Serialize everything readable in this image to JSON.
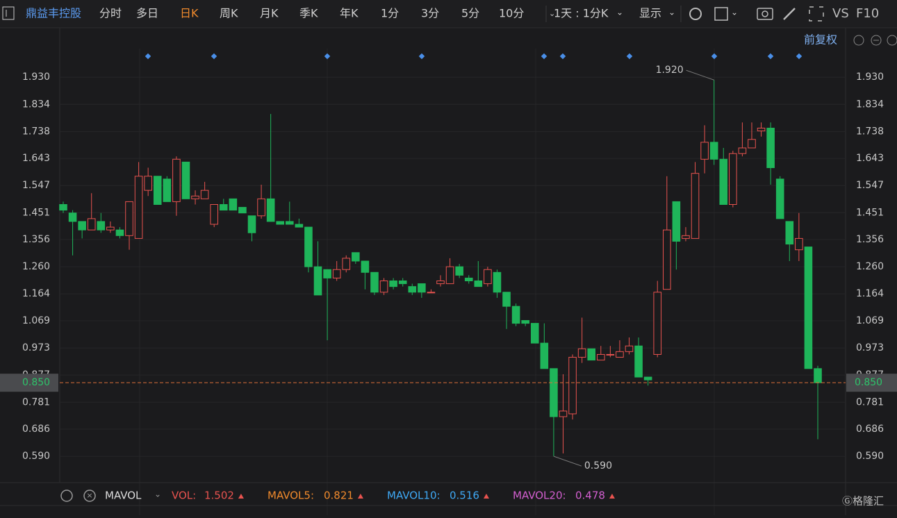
{
  "toolbar": {
    "stock": "鼎益丰控股",
    "tabs": [
      "分时",
      "多日",
      "日K",
      "周K",
      "月K",
      "季K",
      "年K",
      "1分",
      "3分",
      "5分",
      "10分"
    ],
    "period": "1天 : 1分K",
    "display": "显示",
    "vs": "VS",
    "f10": "F10"
  },
  "adjust": "前复权",
  "chart_data": {
    "type": "candlestick",
    "open": [
      1.48,
      1.45,
      1.42,
      1.39,
      1.42,
      1.39,
      1.39,
      1.37,
      1.36,
      1.53,
      1.58,
      1.57,
      1.49,
      1.63,
      1.5,
      1.5,
      1.41,
      1.48,
      1.5,
      1.47,
      1.44,
      1.44,
      1.5,
      1.42,
      1.42,
      1.41,
      1.4,
      1.26,
      1.25,
      1.22,
      1.25,
      1.31,
      1.28,
      1.24,
      1.17,
      1.21,
      1.21,
      1.19,
      1.2,
      1.17,
      1.2,
      1.2,
      1.26,
      1.22,
      1.21,
      1.2,
      1.24,
      1.17,
      1.12,
      1.07,
      1.06,
      0.99,
      0.9,
      0.73,
      0.74,
      0.94,
      0.97,
      0.93,
      0.95,
      0.94,
      0.96,
      0.98,
      0.87,
      0.95,
      1.18,
      1.49,
      1.36,
      1.36,
      1.64,
      1.7,
      1.64,
      1.48,
      1.66,
      1.68,
      1.74,
      1.75,
      1.57,
      1.42,
      1.32,
      1.33,
      0.9
    ],
    "high": [
      1.49,
      1.46,
      1.42,
      1.52,
      1.45,
      1.42,
      1.4,
      1.49,
      1.63,
      1.61,
      1.58,
      1.58,
      1.65,
      1.63,
      1.53,
      1.56,
      1.48,
      1.5,
      1.5,
      1.47,
      1.44,
      1.55,
      1.8,
      1.42,
      1.49,
      1.43,
      1.4,
      1.35,
      1.25,
      1.28,
      1.3,
      1.31,
      1.28,
      1.24,
      1.22,
      1.22,
      1.22,
      1.2,
      1.2,
      1.18,
      1.23,
      1.29,
      1.27,
      1.23,
      1.28,
      1.26,
      1.25,
      1.17,
      1.13,
      1.07,
      1.06,
      1.06,
      0.9,
      0.88,
      0.95,
      1.08,
      0.97,
      0.98,
      0.98,
      1.0,
      1.01,
      1.01,
      0.87,
      1.21,
      1.58,
      1.49,
      1.4,
      1.63,
      1.76,
      1.92,
      1.68,
      1.67,
      1.77,
      1.77,
      1.77,
      1.77,
      1.58,
      1.42,
      1.45,
      1.33,
      0.91
    ],
    "low": [
      1.45,
      1.3,
      1.36,
      1.39,
      1.38,
      1.38,
      1.36,
      1.32,
      1.36,
      1.51,
      1.48,
      1.49,
      1.44,
      1.5,
      1.48,
      1.5,
      1.4,
      1.46,
      1.46,
      1.45,
      1.35,
      1.43,
      1.42,
      1.41,
      1.41,
      1.4,
      1.24,
      1.16,
      1.0,
      1.21,
      1.24,
      1.27,
      1.18,
      1.16,
      1.16,
      1.18,
      1.19,
      1.16,
      1.15,
      1.17,
      1.19,
      1.2,
      1.22,
      1.2,
      1.19,
      1.19,
      1.15,
      1.04,
      1.05,
      1.05,
      0.99,
      0.9,
      0.59,
      0.6,
      0.72,
      0.92,
      0.93,
      0.93,
      0.94,
      0.94,
      0.95,
      0.87,
      0.84,
      0.94,
      1.18,
      1.25,
      1.35,
      1.36,
      1.59,
      1.62,
      1.48,
      1.47,
      1.65,
      1.68,
      1.72,
      1.55,
      1.43,
      1.28,
      1.28,
      0.9,
      0.65
    ],
    "close": [
      1.46,
      1.42,
      1.39,
      1.43,
      1.39,
      1.4,
      1.37,
      1.49,
      1.58,
      1.58,
      1.48,
      1.49,
      1.64,
      1.5,
      1.51,
      1.53,
      1.48,
      1.46,
      1.46,
      1.45,
      1.38,
      1.5,
      1.42,
      1.41,
      1.41,
      1.4,
      1.26,
      1.16,
      1.22,
      1.25,
      1.29,
      1.28,
      1.24,
      1.17,
      1.21,
      1.19,
      1.2,
      1.17,
      1.17,
      1.17,
      1.21,
      1.26,
      1.23,
      1.21,
      1.19,
      1.25,
      1.17,
      1.12,
      1.06,
      1.06,
      0.99,
      0.9,
      0.73,
      0.75,
      0.94,
      0.97,
      0.93,
      0.95,
      0.95,
      0.96,
      0.98,
      0.87,
      0.86,
      1.17,
      1.39,
      1.35,
      1.37,
      1.59,
      1.7,
      1.64,
      1.48,
      1.66,
      1.68,
      1.71,
      1.75,
      1.61,
      1.43,
      1.34,
      1.36,
      0.9,
      0.85
    ],
    "up_color": "#e8534f",
    "down_color": "#1fb55a",
    "ylim": [
      0.497,
      2.031
    ],
    "yticks": [
      {
        "value": 0.59,
        "label": "0.590"
      },
      0.686,
      0.781,
      0.877,
      0.973,
      1.069,
      1.164,
      {
        "value": 1.26,
        "label": "1.260"
      },
      1.356,
      1.451,
      1.547,
      1.643,
      1.738,
      1.834,
      {
        "value": 1.93,
        "label": "1.930"
      }
    ],
    "high_label": {
      "value": 1.92,
      "label": "1.920"
    },
    "low_label": {
      "value": 0.59,
      "label": "0.590"
    },
    "last_price": {
      "value": 0.85,
      "label": "0.850"
    }
  },
  "volume_indicator": {
    "name": "MAVOL",
    "items": [
      {
        "label": "VOL:",
        "value": 1.502
      },
      {
        "label": "MAVOL5:",
        "value": 0.821
      },
      {
        "label": "MAVOL10:",
        "value": 0.516
      },
      {
        "label": "MAVOL20:",
        "value": 0.478
      }
    ]
  }
}
